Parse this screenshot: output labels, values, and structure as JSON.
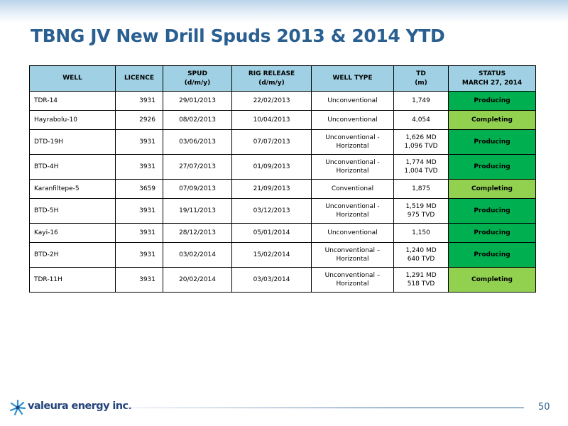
{
  "slide": {
    "title": "TBNG JV New Drill Spuds 2013 & 2014 YTD",
    "page_number": "50"
  },
  "colors": {
    "title": "#2a5f91",
    "header_bg": "#9fd0e3",
    "producing": "#00b050",
    "completing": "#92d050"
  },
  "table": {
    "headers": {
      "well": "WELL",
      "licence": "LICENCE",
      "spud": [
        "SPUD",
        "(d/m/y)"
      ],
      "rig_release": [
        "RIG RELEASE",
        "(d/m/y)"
      ],
      "well_type": "WELL TYPE",
      "td": [
        "TD",
        "(m)"
      ],
      "status": [
        "STATUS",
        "MARCH 27, 2014"
      ]
    },
    "rows": [
      {
        "well": "TDR-14",
        "licence": "3931",
        "spud": "29/01/2013",
        "rig_release": "22/02/2013",
        "well_type": [
          "Unconventional"
        ],
        "td": [
          "1,749"
        ],
        "status": "Producing"
      },
      {
        "well": "Hayrabolu-10",
        "licence": "2926",
        "spud": "08/02/2013",
        "rig_release": "10/04/2013",
        "well_type": [
          "Unconventional"
        ],
        "td": [
          "4,054"
        ],
        "status": "Completing"
      },
      {
        "well": "DTD-19H",
        "licence": "3931",
        "spud": "03/06/2013",
        "rig_release": "07/07/2013",
        "well_type": [
          "Unconventional -",
          "Horizontal"
        ],
        "td": [
          "1,626 MD",
          "1,096 TVD"
        ],
        "status": "Producing"
      },
      {
        "well": "BTD-4H",
        "licence": "3931",
        "spud": "27/07/2013",
        "rig_release": "01/09/2013",
        "well_type": [
          "Unconventional -",
          "Horizontal"
        ],
        "td": [
          "1,774 MD",
          "1,004 TVD"
        ],
        "status": "Producing"
      },
      {
        "well": "Karanfiltepe-5",
        "licence": "3659",
        "spud": "07/09/2013",
        "rig_release": "21/09/2013",
        "well_type": [
          "Conventional"
        ],
        "td": [
          "1,875"
        ],
        "status": "Completing"
      },
      {
        "well": "BTD-5H",
        "licence": "3931",
        "spud": "19/11/2013",
        "rig_release": "03/12/2013",
        "well_type": [
          "Unconventional -",
          "Horizontal"
        ],
        "td": [
          "1,519 MD",
          "975 TVD"
        ],
        "status": "Producing"
      },
      {
        "well": "Kayi-16",
        "licence": "3931",
        "spud": "28/12/2013",
        "rig_release": "05/01/2014",
        "well_type": [
          "Unconventional"
        ],
        "td": [
          "1,150"
        ],
        "status": "Producing"
      },
      {
        "well": "BTD-2H",
        "licence": "3931",
        "spud": "03/02/2014",
        "rig_release": "15/02/2014",
        "well_type": [
          "Unconventional –",
          "Horizontal"
        ],
        "td": [
          "1,240 MD",
          "640 TVD"
        ],
        "status": "Producing"
      },
      {
        "well": "TDR-11H",
        "licence": "3931",
        "spud": "20/02/2014",
        "rig_release": "03/03/2014",
        "well_type": [
          "Unconventional –",
          "Horizontal"
        ],
        "td": [
          "1,291 MD",
          "518 TVD"
        ],
        "status": "Completing"
      }
    ]
  },
  "footer": {
    "logo_text": "valeura energy inc.",
    "logo_icon": "valeura-star-logo-icon"
  }
}
